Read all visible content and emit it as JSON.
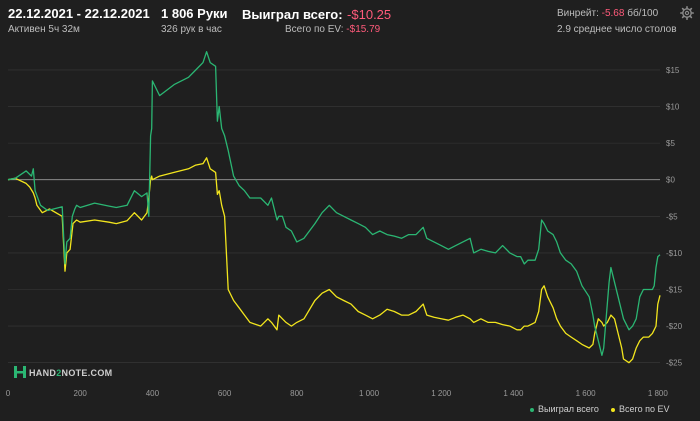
{
  "header": {
    "date_range": "22.12.2021 - 22.12.2021",
    "active": "Активен 5ч 32м",
    "hands": "1 806 Руки",
    "hands_per_hour": "326 рук в час",
    "won_label": "Выиграл всего:",
    "won_value": "-$10.25",
    "ev_label": "Всего по EV:",
    "ev_value": "-$15.79",
    "winrate_label": "Винрейт:",
    "winrate_value": "-5.68",
    "winrate_unit": "бб/100",
    "avg_tables": "2.9 среднее число столов",
    "settings_icon": "gear-icon"
  },
  "logo": {
    "text_a": "HAND",
    "text_b": "2",
    "text_c": "NOTE.COM"
  },
  "chart_data": {
    "type": "line",
    "xlim": [
      0,
      1806
    ],
    "ylim": [
      -26,
      18
    ],
    "x_ticks": [
      0,
      200,
      400,
      600,
      800,
      1000,
      1200,
      1400,
      1600,
      1800
    ],
    "x_tick_labels": [
      "0",
      "200",
      "400",
      "600",
      "800",
      "1 000",
      "1 200",
      "1 400",
      "1 600",
      "1 800"
    ],
    "y_ticks": [
      15,
      10,
      5,
      0,
      -5,
      -10,
      -15,
      -20,
      -25
    ],
    "y_tick_labels": [
      "$15",
      "$10",
      "$5",
      "$0",
      "-$5",
      "-$10",
      "-$15",
      "-$20",
      "-$25"
    ],
    "grid": true,
    "legend_position": "bottom-right",
    "colors": {
      "won": "#2bb673",
      "ev": "#f2e51d",
      "zero": "#9a9a9a",
      "grid": "#3a3a3a"
    },
    "series": [
      {
        "name": "Выиграл всего",
        "points": [
          [
            0,
            0
          ],
          [
            20,
            0.2
          ],
          [
            50,
            1.2
          ],
          [
            65,
            0.5
          ],
          [
            70,
            1.5
          ],
          [
            75,
            -1.5
          ],
          [
            90,
            -3.5
          ],
          [
            110,
            -4.2
          ],
          [
            150,
            -3.7
          ],
          [
            158,
            -11.5
          ],
          [
            163,
            -8.5
          ],
          [
            172,
            -8
          ],
          [
            178,
            -5
          ],
          [
            185,
            -4
          ],
          [
            190,
            -3.5
          ],
          [
            200,
            -3.8
          ],
          [
            240,
            -3.2
          ],
          [
            280,
            -3.6
          ],
          [
            300,
            -3.8
          ],
          [
            330,
            -3.5
          ],
          [
            350,
            -1.5
          ],
          [
            370,
            -2.3
          ],
          [
            385,
            -1.8
          ],
          [
            390,
            -5
          ],
          [
            395,
            6
          ],
          [
            398,
            7
          ],
          [
            400,
            13.5
          ],
          [
            420,
            11.5
          ],
          [
            460,
            13
          ],
          [
            500,
            14
          ],
          [
            520,
            15
          ],
          [
            540,
            16
          ],
          [
            550,
            17.5
          ],
          [
            560,
            16
          ],
          [
            575,
            15.5
          ],
          [
            580,
            8
          ],
          [
            585,
            10
          ],
          [
            592,
            7
          ],
          [
            600,
            6
          ],
          [
            610,
            4
          ],
          [
            625,
            0.5
          ],
          [
            640,
            -0.8
          ],
          [
            655,
            -1.5
          ],
          [
            670,
            -2.5
          ],
          [
            700,
            -2.5
          ],
          [
            720,
            -3.5
          ],
          [
            730,
            -2.5
          ],
          [
            745,
            -5.5
          ],
          [
            750,
            -5
          ],
          [
            760,
            -5
          ],
          [
            770,
            -6.5
          ],
          [
            785,
            -7
          ],
          [
            800,
            -8.5
          ],
          [
            820,
            -8
          ],
          [
            850,
            -6
          ],
          [
            870,
            -4.5
          ],
          [
            890,
            -3.5
          ],
          [
            910,
            -4.5
          ],
          [
            930,
            -5
          ],
          [
            950,
            -5.5
          ],
          [
            970,
            -6
          ],
          [
            990,
            -6.5
          ],
          [
            1010,
            -7.5
          ],
          [
            1030,
            -7
          ],
          [
            1050,
            -7.5
          ],
          [
            1070,
            -7.7
          ],
          [
            1090,
            -8
          ],
          [
            1110,
            -7.5
          ],
          [
            1130,
            -7.5
          ],
          [
            1150,
            -6.5
          ],
          [
            1160,
            -8
          ],
          [
            1180,
            -8.5
          ],
          [
            1200,
            -9
          ],
          [
            1220,
            -9.5
          ],
          [
            1240,
            -9
          ],
          [
            1260,
            -8.5
          ],
          [
            1280,
            -8
          ],
          [
            1290,
            -10
          ],
          [
            1310,
            -9.5
          ],
          [
            1330,
            -9.8
          ],
          [
            1350,
            -10
          ],
          [
            1370,
            -9
          ],
          [
            1390,
            -10
          ],
          [
            1410,
            -10.5
          ],
          [
            1420,
            -10.5
          ],
          [
            1430,
            -11.5
          ],
          [
            1440,
            -11
          ],
          [
            1460,
            -11
          ],
          [
            1470,
            -9.5
          ],
          [
            1478,
            -5.5
          ],
          [
            1485,
            -6
          ],
          [
            1495,
            -7
          ],
          [
            1510,
            -7.5
          ],
          [
            1520,
            -8.5
          ],
          [
            1530,
            -10
          ],
          [
            1545,
            -11
          ],
          [
            1560,
            -11.5
          ],
          [
            1575,
            -12.5
          ],
          [
            1590,
            -14.5
          ],
          [
            1610,
            -16
          ],
          [
            1620,
            -18.5
          ],
          [
            1625,
            -20
          ],
          [
            1635,
            -22
          ],
          [
            1645,
            -24
          ],
          [
            1650,
            -23
          ],
          [
            1660,
            -17
          ],
          [
            1665,
            -14
          ],
          [
            1670,
            -12
          ],
          [
            1680,
            -14
          ],
          [
            1690,
            -16
          ],
          [
            1700,
            -18
          ],
          [
            1705,
            -19
          ],
          [
            1720,
            -20.5
          ],
          [
            1730,
            -20
          ],
          [
            1740,
            -19
          ],
          [
            1750,
            -16
          ],
          [
            1760,
            -15
          ],
          [
            1775,
            -15
          ],
          [
            1785,
            -15
          ],
          [
            1790,
            -14.5
          ],
          [
            1795,
            -12
          ],
          [
            1800,
            -10.5
          ],
          [
            1806,
            -10.25
          ]
        ]
      },
      {
        "name": "Всего по EV",
        "points": [
          [
            0,
            0
          ],
          [
            20,
            0.2
          ],
          [
            50,
            -0.5
          ],
          [
            60,
            -1
          ],
          [
            70,
            -1.8
          ],
          [
            75,
            -2.5
          ],
          [
            80,
            -3.5
          ],
          [
            95,
            -4.5
          ],
          [
            115,
            -4
          ],
          [
            150,
            -5
          ],
          [
            158,
            -12.5
          ],
          [
            163,
            -10
          ],
          [
            172,
            -9.5
          ],
          [
            180,
            -6
          ],
          [
            190,
            -5.5
          ],
          [
            200,
            -5.8
          ],
          [
            240,
            -5.5
          ],
          [
            280,
            -5.8
          ],
          [
            300,
            -6
          ],
          [
            330,
            -5.6
          ],
          [
            350,
            -4.5
          ],
          [
            370,
            -5.5
          ],
          [
            385,
            -4.5
          ],
          [
            390,
            -2.5
          ],
          [
            395,
            0
          ],
          [
            398,
            0.5
          ],
          [
            400,
            0
          ],
          [
            420,
            0.5
          ],
          [
            460,
            1
          ],
          [
            500,
            1.5
          ],
          [
            520,
            2
          ],
          [
            540,
            2.2
          ],
          [
            550,
            3
          ],
          [
            560,
            1.5
          ],
          [
            575,
            1
          ],
          [
            580,
            -2
          ],
          [
            585,
            -1.5
          ],
          [
            592,
            -3.5
          ],
          [
            600,
            -5
          ],
          [
            610,
            -15
          ],
          [
            625,
            -16.5
          ],
          [
            640,
            -17.5
          ],
          [
            655,
            -18.5
          ],
          [
            670,
            -19.5
          ],
          [
            700,
            -20
          ],
          [
            720,
            -19
          ],
          [
            730,
            -19.5
          ],
          [
            745,
            -20.5
          ],
          [
            750,
            -18.5
          ],
          [
            760,
            -19
          ],
          [
            770,
            -19.5
          ],
          [
            785,
            -20
          ],
          [
            800,
            -19.5
          ],
          [
            820,
            -19
          ],
          [
            850,
            -16.5
          ],
          [
            870,
            -15.5
          ],
          [
            890,
            -15
          ],
          [
            910,
            -16
          ],
          [
            930,
            -16.5
          ],
          [
            950,
            -17
          ],
          [
            970,
            -18
          ],
          [
            990,
            -18.5
          ],
          [
            1010,
            -19
          ],
          [
            1030,
            -18.5
          ],
          [
            1050,
            -17.7
          ],
          [
            1070,
            -18
          ],
          [
            1090,
            -18.5
          ],
          [
            1110,
            -18.5
          ],
          [
            1130,
            -18
          ],
          [
            1150,
            -17
          ],
          [
            1160,
            -18.5
          ],
          [
            1180,
            -18.8
          ],
          [
            1200,
            -19
          ],
          [
            1220,
            -19.2
          ],
          [
            1240,
            -18.8
          ],
          [
            1260,
            -18.5
          ],
          [
            1280,
            -19
          ],
          [
            1290,
            -19.5
          ],
          [
            1310,
            -19
          ],
          [
            1330,
            -19.5
          ],
          [
            1350,
            -19.5
          ],
          [
            1370,
            -19.8
          ],
          [
            1390,
            -20
          ],
          [
            1410,
            -20.5
          ],
          [
            1420,
            -20.5
          ],
          [
            1430,
            -20
          ],
          [
            1440,
            -20
          ],
          [
            1460,
            -19.5
          ],
          [
            1470,
            -18
          ],
          [
            1478,
            -15
          ],
          [
            1485,
            -14.5
          ],
          [
            1495,
            -16
          ],
          [
            1510,
            -17.5
          ],
          [
            1520,
            -19
          ],
          [
            1530,
            -20
          ],
          [
            1545,
            -21
          ],
          [
            1560,
            -21.5
          ],
          [
            1575,
            -22
          ],
          [
            1590,
            -22.5
          ],
          [
            1610,
            -23
          ],
          [
            1620,
            -22.5
          ],
          [
            1625,
            -21
          ],
          [
            1635,
            -19
          ],
          [
            1645,
            -19.5
          ],
          [
            1650,
            -20
          ],
          [
            1660,
            -19.5
          ],
          [
            1665,
            -19
          ],
          [
            1670,
            -18.5
          ],
          [
            1680,
            -19
          ],
          [
            1690,
            -21
          ],
          [
            1700,
            -23
          ],
          [
            1705,
            -24.5
          ],
          [
            1720,
            -25
          ],
          [
            1730,
            -24.5
          ],
          [
            1740,
            -23
          ],
          [
            1750,
            -22
          ],
          [
            1760,
            -21.5
          ],
          [
            1775,
            -21.5
          ],
          [
            1785,
            -21
          ],
          [
            1790,
            -20.5
          ],
          [
            1795,
            -20
          ],
          [
            1800,
            -17
          ],
          [
            1806,
            -15.79
          ]
        ]
      }
    ]
  }
}
